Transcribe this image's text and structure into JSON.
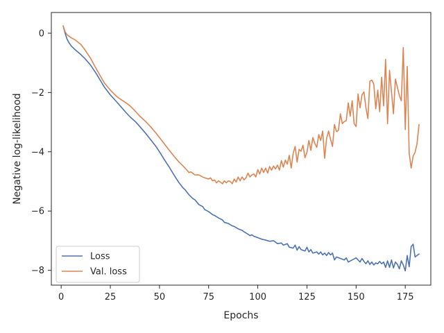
{
  "chart_data": {
    "type": "line",
    "title": "",
    "xlabel": "Epochs",
    "ylabel": "Negative log-likelihood",
    "xlim": [
      -5,
      188
    ],
    "ylim": [
      -8.5,
      0.7
    ],
    "x_ticks": [
      0,
      25,
      50,
      75,
      100,
      125,
      150,
      175
    ],
    "y_ticks": [
      0,
      -2,
      -4,
      -6,
      -8
    ],
    "y_tick_labels": [
      "0",
      "−2",
      "−4",
      "−6",
      "−8"
    ],
    "grid": false,
    "legend_position": "lower-left",
    "series": [
      {
        "name": "Loss",
        "color": "#4c72b0",
        "points": [
          [
            1,
            0.25
          ],
          [
            2,
            0.0
          ],
          [
            3,
            -0.2
          ],
          [
            4,
            -0.32
          ],
          [
            5,
            -0.42
          ],
          [
            7,
            -0.55
          ],
          [
            10,
            -0.72
          ],
          [
            12,
            -0.85
          ],
          [
            15,
            -1.08
          ],
          [
            18,
            -1.38
          ],
          [
            20,
            -1.6
          ],
          [
            22,
            -1.82
          ],
          [
            25,
            -2.08
          ],
          [
            28,
            -2.3
          ],
          [
            30,
            -2.45
          ],
          [
            33,
            -2.68
          ],
          [
            35,
            -2.82
          ],
          [
            38,
            -3.0
          ],
          [
            40,
            -3.15
          ],
          [
            43,
            -3.38
          ],
          [
            45,
            -3.55
          ],
          [
            48,
            -3.8
          ],
          [
            50,
            -4.0
          ],
          [
            53,
            -4.32
          ],
          [
            55,
            -4.52
          ],
          [
            58,
            -4.85
          ],
          [
            60,
            -5.05
          ],
          [
            62,
            -5.22
          ],
          [
            63,
            -5.28
          ],
          [
            65,
            -5.45
          ],
          [
            67,
            -5.58
          ],
          [
            68,
            -5.62
          ],
          [
            70,
            -5.78
          ],
          [
            72,
            -5.85
          ],
          [
            73,
            -5.95
          ],
          [
            75,
            -6.02
          ],
          [
            77,
            -6.12
          ],
          [
            78,
            -6.15
          ],
          [
            80,
            -6.23
          ],
          [
            82,
            -6.3
          ],
          [
            83,
            -6.38
          ],
          [
            85,
            -6.42
          ],
          [
            87,
            -6.5
          ],
          [
            88,
            -6.52
          ],
          [
            90,
            -6.6
          ],
          [
            92,
            -6.65
          ],
          [
            93,
            -6.7
          ],
          [
            95,
            -6.78
          ],
          [
            96,
            -6.83
          ],
          [
            97,
            -6.8
          ],
          [
            98,
            -6.85
          ],
          [
            100,
            -6.9
          ],
          [
            102,
            -6.95
          ],
          [
            104,
            -6.98
          ],
          [
            106,
            -7.02
          ],
          [
            108,
            -7.0
          ],
          [
            110,
            -7.1
          ],
          [
            112,
            -7.08
          ],
          [
            113,
            -7.15
          ],
          [
            115,
            -7.1
          ],
          [
            116,
            -7.22
          ],
          [
            118,
            -7.25
          ],
          [
            119,
            -7.15
          ],
          [
            120,
            -7.32
          ],
          [
            121,
            -7.2
          ],
          [
            122,
            -7.3
          ],
          [
            124,
            -7.35
          ],
          [
            125,
            -7.22
          ],
          [
            126,
            -7.38
          ],
          [
            127,
            -7.3
          ],
          [
            128,
            -7.42
          ],
          [
            130,
            -7.38
          ],
          [
            131,
            -7.45
          ],
          [
            132,
            -7.38
          ],
          [
            133,
            -7.48
          ],
          [
            134,
            -7.42
          ],
          [
            135,
            -7.5
          ],
          [
            136,
            -7.4
          ],
          [
            137,
            -7.48
          ],
          [
            138,
            -7.42
          ],
          [
            139,
            -7.65
          ],
          [
            140,
            -7.55
          ],
          [
            142,
            -7.6
          ],
          [
            144,
            -7.65
          ],
          [
            145,
            -7.58
          ],
          [
            146,
            -7.72
          ],
          [
            148,
            -7.65
          ],
          [
            150,
            -7.58
          ],
          [
            151,
            -7.65
          ],
          [
            152,
            -7.72
          ],
          [
            153,
            -7.6
          ],
          [
            154,
            -7.7
          ],
          [
            155,
            -7.78
          ],
          [
            156,
            -7.68
          ],
          [
            157,
            -7.8
          ],
          [
            158,
            -7.72
          ],
          [
            159,
            -7.82
          ],
          [
            160,
            -7.75
          ],
          [
            161,
            -7.78
          ],
          [
            162,
            -7.7
          ],
          [
            163,
            -7.78
          ],
          [
            164,
            -7.72
          ],
          [
            165,
            -7.9
          ],
          [
            166,
            -7.68
          ],
          [
            167,
            -7.9
          ],
          [
            168,
            -7.65
          ],
          [
            169,
            -7.92
          ],
          [
            170,
            -7.72
          ],
          [
            171,
            -7.8
          ],
          [
            172,
            -7.95
          ],
          [
            173,
            -7.68
          ],
          [
            174,
            -7.82
          ],
          [
            175,
            -8.02
          ],
          [
            176,
            -7.5
          ],
          [
            177,
            -7.88
          ],
          [
            178,
            -7.2
          ],
          [
            179,
            -7.12
          ],
          [
            180,
            -7.55
          ],
          [
            182,
            -7.45
          ]
        ]
      },
      {
        "name": "Val. loss",
        "color": "#dd8452",
        "points": [
          [
            1,
            0.25
          ],
          [
            2,
            0.05
          ],
          [
            3,
            -0.05
          ],
          [
            5,
            -0.15
          ],
          [
            7,
            -0.22
          ],
          [
            10,
            -0.38
          ],
          [
            12,
            -0.55
          ],
          [
            15,
            -0.85
          ],
          [
            18,
            -1.22
          ],
          [
            20,
            -1.45
          ],
          [
            22,
            -1.68
          ],
          [
            25,
            -1.92
          ],
          [
            28,
            -2.12
          ],
          [
            30,
            -2.22
          ],
          [
            33,
            -2.35
          ],
          [
            35,
            -2.45
          ],
          [
            38,
            -2.65
          ],
          [
            40,
            -2.8
          ],
          [
            43,
            -2.98
          ],
          [
            45,
            -3.12
          ],
          [
            48,
            -3.35
          ],
          [
            50,
            -3.52
          ],
          [
            53,
            -3.78
          ],
          [
            55,
            -3.95
          ],
          [
            58,
            -4.2
          ],
          [
            60,
            -4.35
          ],
          [
            62,
            -4.48
          ],
          [
            63,
            -4.55
          ],
          [
            65,
            -4.7
          ],
          [
            66,
            -4.68
          ],
          [
            68,
            -4.78
          ],
          [
            70,
            -4.78
          ],
          [
            72,
            -4.85
          ],
          [
            73,
            -4.88
          ],
          [
            75,
            -4.92
          ],
          [
            76,
            -4.88
          ],
          [
            77,
            -4.98
          ],
          [
            78,
            -4.95
          ],
          [
            79,
            -5.05
          ],
          [
            80,
            -4.98
          ],
          [
            81,
            -5.02
          ],
          [
            82,
            -5.08
          ],
          [
            83,
            -4.98
          ],
          [
            84,
            -5.05
          ],
          [
            85,
            -4.98
          ],
          [
            86,
            -5.0
          ],
          [
            87,
            -5.08
          ],
          [
            88,
            -4.92
          ],
          [
            89,
            -5.02
          ],
          [
            90,
            -4.85
          ],
          [
            91,
            -4.98
          ],
          [
            92,
            -4.85
          ],
          [
            93,
            -4.95
          ],
          [
            94,
            -4.88
          ],
          [
            95,
            -4.72
          ],
          [
            96,
            -4.85
          ],
          [
            97,
            -4.78
          ],
          [
            98,
            -4.75
          ],
          [
            99,
            -4.85
          ],
          [
            100,
            -4.6
          ],
          [
            101,
            -4.75
          ],
          [
            102,
            -4.55
          ],
          [
            103,
            -4.7
          ],
          [
            104,
            -4.55
          ],
          [
            105,
            -4.72
          ],
          [
            106,
            -4.5
          ],
          [
            107,
            -4.62
          ],
          [
            108,
            -4.48
          ],
          [
            109,
            -4.58
          ],
          [
            110,
            -4.45
          ],
          [
            111,
            -4.62
          ],
          [
            112,
            -4.3
          ],
          [
            113,
            -4.52
          ],
          [
            114,
            -4.28
          ],
          [
            115,
            -4.42
          ],
          [
            116,
            -4.12
          ],
          [
            117,
            -4.55
          ],
          [
            118,
            -4.05
          ],
          [
            119,
            -3.82
          ],
          [
            120,
            -4.35
          ],
          [
            121,
            -3.92
          ],
          [
            122,
            -3.98
          ],
          [
            123,
            -3.78
          ],
          [
            124,
            -4.2
          ],
          [
            125,
            -4.02
          ],
          [
            126,
            -3.62
          ],
          [
            127,
            -3.95
          ],
          [
            128,
            -3.52
          ],
          [
            129,
            -3.72
          ],
          [
            130,
            -3.85
          ],
          [
            131,
            -3.42
          ],
          [
            132,
            -3.62
          ],
          [
            133,
            -3.3
          ],
          [
            134,
            -4.22
          ],
          [
            135,
            -3.55
          ],
          [
            136,
            -3.3
          ],
          [
            137,
            -3.58
          ],
          [
            138,
            -3.82
          ],
          [
            139,
            -3.08
          ],
          [
            140,
            -3.32
          ],
          [
            141,
            -3.28
          ],
          [
            142,
            -2.72
          ],
          [
            143,
            -3.05
          ],
          [
            144,
            -2.98
          ],
          [
            145,
            -2.95
          ],
          [
            146,
            -2.35
          ],
          [
            147,
            -2.8
          ],
          [
            148,
            -2.28
          ],
          [
            149,
            -3.05
          ],
          [
            150,
            -3.15
          ],
          [
            151,
            -2.05
          ],
          [
            152,
            -2.52
          ],
          [
            153,
            -2.08
          ],
          [
            154,
            -1.98
          ],
          [
            155,
            -2.52
          ],
          [
            156,
            -2.88
          ],
          [
            157,
            -1.62
          ],
          [
            158,
            -1.58
          ],
          [
            159,
            -1.72
          ],
          [
            160,
            -2.55
          ],
          [
            161,
            -1.92
          ],
          [
            162,
            -2.65
          ],
          [
            163,
            -1.48
          ],
          [
            164,
            -2.45
          ],
          [
            165,
            -0.88
          ],
          [
            166,
            -3.05
          ],
          [
            167,
            -1.25
          ],
          [
            168,
            -1.98
          ],
          [
            169,
            -2.72
          ],
          [
            170,
            -1.55
          ],
          [
            171,
            -1.82
          ],
          [
            172,
            -2.1
          ],
          [
            173,
            -2.28
          ],
          [
            174,
            -0.48
          ],
          [
            175,
            -3.25
          ],
          [
            176,
            -1.12
          ],
          [
            177,
            -4.05
          ],
          [
            178,
            -4.55
          ],
          [
            179,
            -4.15
          ],
          [
            180,
            -4.02
          ],
          [
            181,
            -3.72
          ],
          [
            182,
            -3.08
          ]
        ]
      }
    ]
  }
}
